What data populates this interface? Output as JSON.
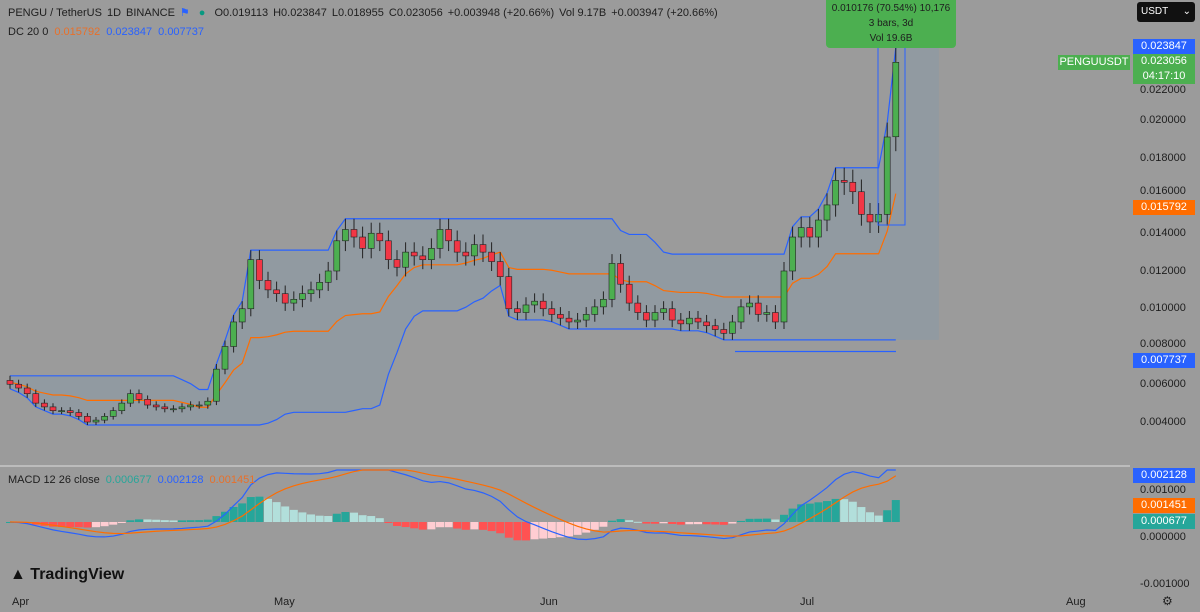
{
  "header": {
    "symbol": "PENGU / TetherUS",
    "interval": "1D",
    "exchange": "BINANCE",
    "open": "O0.019113",
    "high": "H0.023847",
    "low": "L0.018955",
    "close": "C0.023056",
    "change": "+0.003948 (+20.66%)",
    "volume": "Vol 9.17B",
    "vol_change": "+0.003947 (+20.66%)"
  },
  "dc": {
    "label": "DC 20 0",
    "basis": "0.015792",
    "upper": "0.023847",
    "lower": "0.007737",
    "length": 20
  },
  "macd": {
    "label": "MACD 12 26 close",
    "hist": "0.000677",
    "macd": "0.002128",
    "signal": "0.001451"
  },
  "tooltip": {
    "line1": "0.010176 (70.54%) 10,176",
    "line2": "3 bars, 3d",
    "line3": "Vol 19.6B"
  },
  "currency": "USDT",
  "price_labels": {
    "upper": "0.023847",
    "symbol": "PENGUUSDT",
    "last": "0.023056",
    "countdown": "04:17:10",
    "basis": "0.015792",
    "lower": "0.007737",
    "macd": "0.002128",
    "signal": "0.001451",
    "hist": "0.000677"
  },
  "price_axis": [
    "0.022000",
    "0.020000",
    "0.018000",
    "0.016000",
    "0.014000",
    "0.012000",
    "0.010000",
    "0.008000",
    "0.006000",
    "0.004000"
  ],
  "macd_axis": [
    "0.001000",
    "0.000000",
    "-0.001000"
  ],
  "date_axis": [
    "Apr",
    "May",
    "Jun",
    "Jul",
    "Aug"
  ],
  "logo": "TradingView",
  "colors": {
    "up": "#4caf50",
    "down": "#f23645",
    "upper": "#2962ff",
    "basis": "#ff6d00",
    "macd": "#2962ff",
    "signal": "#ff6d00"
  },
  "chart_data": {
    "type": "candlestick",
    "closes": [
      0.006,
      0.0058,
      0.0055,
      0.005,
      0.0048,
      0.0046,
      0.0046,
      0.0045,
      0.0043,
      0.004,
      0.0041,
      0.0043,
      0.0046,
      0.005,
      0.0055,
      0.0052,
      0.0049,
      0.0048,
      0.0047,
      0.0047,
      0.0048,
      0.0049,
      0.0049,
      0.0051,
      0.0068,
      0.008,
      0.0093,
      0.01,
      0.0126,
      0.0115,
      0.011,
      0.0108,
      0.0103,
      0.0105,
      0.0108,
      0.011,
      0.0114,
      0.012,
      0.0136,
      0.0142,
      0.0138,
      0.0132,
      0.014,
      0.0136,
      0.0126,
      0.0122,
      0.013,
      0.0128,
      0.0126,
      0.0132,
      0.0142,
      0.0136,
      0.013,
      0.0128,
      0.0134,
      0.013,
      0.0125,
      0.0117,
      0.01,
      0.0098,
      0.0102,
      0.0104,
      0.01,
      0.0097,
      0.0095,
      0.0093,
      0.0094,
      0.0097,
      0.0101,
      0.0105,
      0.0124,
      0.0113,
      0.0103,
      0.0098,
      0.0094,
      0.0098,
      0.01,
      0.0094,
      0.0092,
      0.0095,
      0.0093,
      0.0091,
      0.0089,
      0.0087,
      0.0093,
      0.0101,
      0.0103,
      0.0097,
      0.0098,
      0.0093,
      0.012,
      0.0138,
      0.0143,
      0.0138,
      0.0147,
      0.0155,
      0.0168,
      0.0167,
      0.0162,
      0.015,
      0.0146,
      0.015,
      0.0191,
      0.023056
    ],
    "last_open": 0.019113,
    "last_high": 0.023847
  }
}
